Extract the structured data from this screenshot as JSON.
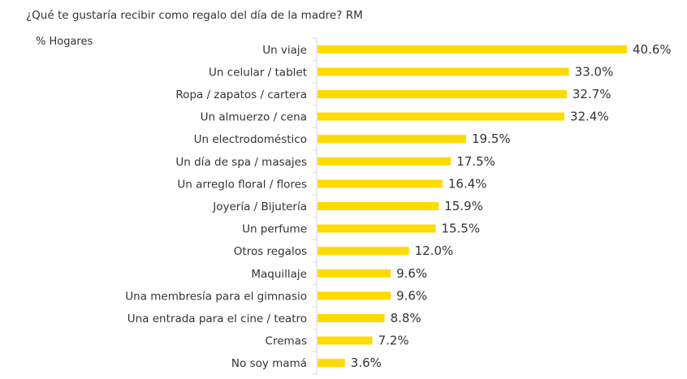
{
  "chart_data": {
    "type": "bar",
    "orientation": "horizontal",
    "title": "¿Qué te gustaría recibir como regalo del día de la madre? RM",
    "ylabel": "% Hogares",
    "xlabel": "",
    "categories": [
      "Un viaje",
      "Un celular / tablet",
      "Ropa / zapatos / cartera",
      "Un almuerzo / cena",
      "Un electrodoméstico",
      "Un día de spa / masajes",
      "Un arreglo floral / flores",
      "Joyería / Bijutería",
      "Un perfume",
      "Otros regalos",
      "Maquillaje",
      "Una membresía para el gimnasio",
      "Una entrada para el cine / teatro",
      "Cremas",
      "No soy mamá"
    ],
    "values": [
      40.6,
      33.0,
      32.7,
      32.4,
      19.5,
      17.5,
      16.4,
      15.9,
      15.5,
      12.0,
      9.6,
      9.6,
      8.8,
      7.2,
      3.6
    ],
    "data_labels": [
      "40.6%",
      "33.0%",
      "32.7%",
      "32.4%",
      "19.5%",
      "17.5%",
      "16.4%",
      "15.9%",
      "15.5%",
      "12.0%",
      "9.6%",
      "9.6%",
      "8.8%",
      "7.2%",
      "3.6%"
    ],
    "xlim": [
      0,
      45
    ],
    "grid": false,
    "legend": "none",
    "colors": {
      "bar": "#FFDA00",
      "axis": "#D9D9D9",
      "text": "#333333"
    }
  }
}
